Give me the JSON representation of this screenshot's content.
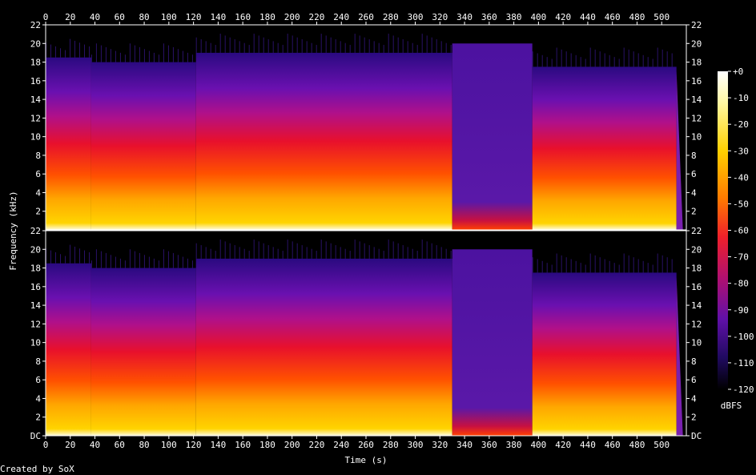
{
  "chart_data": {
    "type": "heatmap",
    "title": "",
    "xlabel": "Time (s)",
    "ylabel": "Frequency (kHz)",
    "xlim": [
      0,
      520
    ],
    "x_ticks": [
      0,
      20,
      40,
      60,
      80,
      100,
      120,
      140,
      160,
      180,
      200,
      220,
      240,
      260,
      280,
      300,
      320,
      340,
      360,
      380,
      400,
      420,
      440,
      460,
      480,
      500
    ],
    "channels": [
      {
        "name": "",
        "ylim": [
          0,
          22
        ],
        "y_ticks": [
          "2",
          "4",
          "6",
          "8",
          "10",
          "12",
          "14",
          "16",
          "18",
          "20",
          "22"
        ]
      },
      {
        "name": "",
        "ylim": [
          0,
          22
        ],
        "y_ticks": [
          "DC",
          "2",
          "4",
          "6",
          "8",
          "10",
          "12",
          "14",
          "16",
          "18",
          "20",
          "22"
        ]
      }
    ],
    "colorbar": {
      "label": "dBFS",
      "range": [
        -120,
        0
      ],
      "ticks": [
        "+0",
        "-10",
        "-20",
        "-30",
        "-40",
        "-50",
        "-60",
        "-70",
        "-80",
        "-90",
        "-100",
        "-110",
        "-120"
      ]
    },
    "segments": [
      {
        "from_s": 0,
        "to_s": 37,
        "cutoff_khz": 18.5,
        "level": "loud"
      },
      {
        "from_s": 37,
        "to_s": 122,
        "cutoff_khz": 18.0,
        "level": "loud"
      },
      {
        "from_s": 122,
        "to_s": 330,
        "cutoff_khz": 19.0,
        "level": "loud"
      },
      {
        "from_s": 330,
        "to_s": 395,
        "cutoff_khz": 20.0,
        "level": "quiet"
      },
      {
        "from_s": 395,
        "to_s": 512,
        "cutoff_khz": 17.5,
        "level": "loud"
      }
    ],
    "grid": false,
    "legend_position": "right"
  },
  "footer": {
    "credit": "Created by SoX"
  },
  "colors": {
    "background": "#000000",
    "text": "#ffffff",
    "frame": "#ffffff"
  }
}
